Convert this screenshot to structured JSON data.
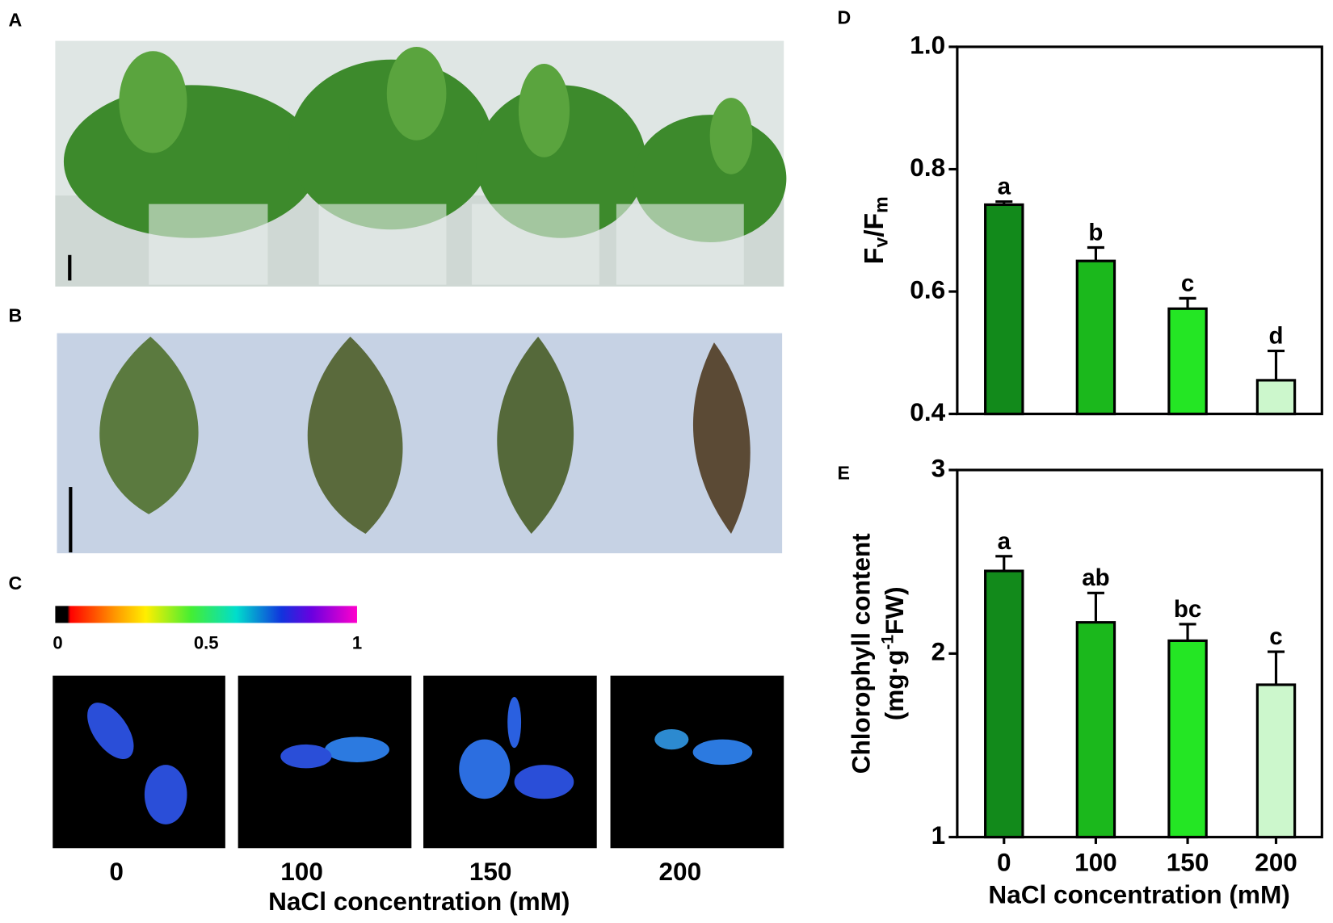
{
  "figure": {
    "panel_labels": [
      "A",
      "B",
      "C"
    ],
    "colorbar_ticks": [
      0,
      0.5,
      1
    ],
    "treatments": [
      "0",
      "100",
      "150",
      "200"
    ],
    "x_label": "NaCl concentration (mM)"
  },
  "chart_data": [
    {
      "type": "bar",
      "panel_label": "D",
      "y_label": [
        "F",
        "v",
        "/F",
        "m"
      ],
      "categories": [
        null,
        null,
        null,
        null
      ],
      "values": [
        0.742,
        0.65,
        0.572,
        0.455
      ],
      "errors": [
        0.005,
        0.022,
        0.017,
        0.048
      ],
      "annotations": [
        "a",
        "b",
        "c",
        "d"
      ],
      "colors": [
        "#128a1b",
        "#1bb81c",
        "#24e624",
        "#ccf7cc"
      ],
      "ylim": [
        0.4,
        1.0
      ],
      "yticks": [
        0.4,
        0.6,
        0.8,
        {
          "value": 1.0,
          "label": "1.0"
        }
      ]
    },
    {
      "type": "bar",
      "panel_label": "E",
      "y_label": [
        "Chlorophyll content",
        "(mg·g",
        "-1",
        "FW)"
      ],
      "x_label": "NaCl concentration (mM)",
      "categories": [
        "0",
        "100",
        "150",
        "200"
      ],
      "values": [
        2.45,
        2.17,
        2.07,
        1.83
      ],
      "errors": [
        0.08,
        0.16,
        0.09,
        0.18
      ],
      "annotations": [
        "a",
        "ab",
        "bc",
        "c"
      ],
      "colors": [
        "#128a1b",
        "#1bb81c",
        "#24e624",
        "#ccf7cc"
      ],
      "ylim": [
        1,
        3
      ],
      "yticks": [
        1,
        2,
        3
      ]
    }
  ]
}
